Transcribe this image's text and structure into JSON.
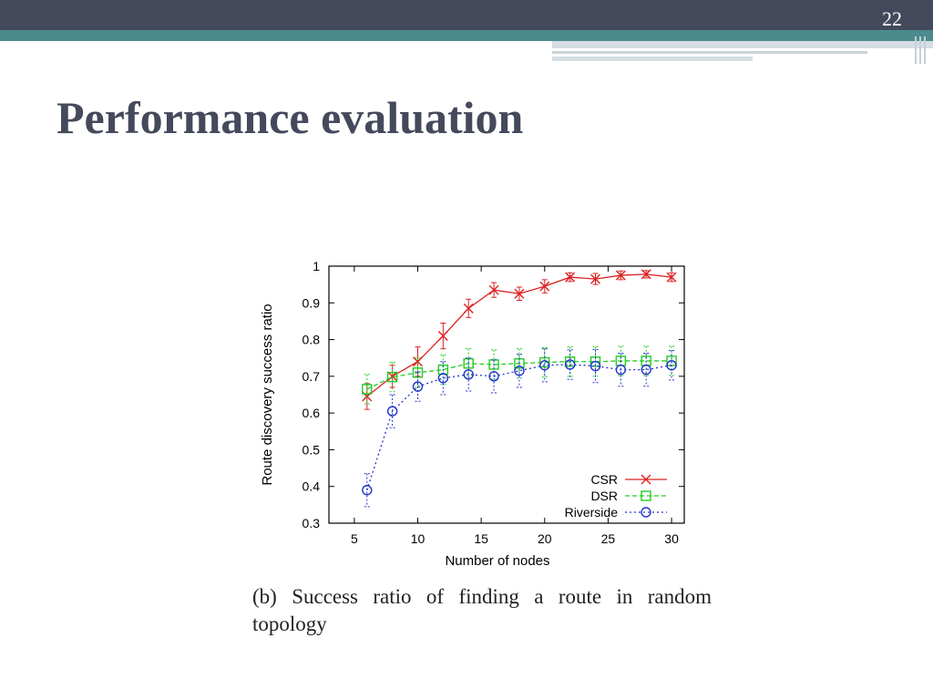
{
  "slide": {
    "number": "22",
    "title": "Performance evaluation",
    "caption": "(b) Success ratio of finding a route in random topology",
    "colors": {
      "top_bar": "#444a5b",
      "teal_band": "#4b8b8d",
      "title": "#444a5b"
    }
  },
  "chart_data": {
    "type": "line",
    "xlabel": "Number of nodes",
    "ylabel": "Route discovery success ratio",
    "xlim": [
      3,
      31
    ],
    "ylim": [
      0.3,
      1.0
    ],
    "x_ticks": [
      5,
      10,
      15,
      20,
      25,
      30
    ],
    "y_ticks": [
      0.3,
      0.4,
      0.5,
      0.6,
      0.7,
      0.8,
      0.9,
      1
    ],
    "y_tick_labels": [
      "0.3",
      "0.4",
      "0.5",
      "0.6",
      "0.7",
      "0.8",
      "0.9",
      "1"
    ],
    "x": [
      6,
      8,
      10,
      12,
      14,
      16,
      18,
      20,
      22,
      24,
      26,
      28,
      30
    ],
    "legend_position": "bottom-right",
    "grid": false,
    "series": [
      {
        "name": "CSR",
        "color": "#dd2020",
        "marker": "x",
        "dash": "",
        "values": [
          0.645,
          0.7,
          0.74,
          0.81,
          0.885,
          0.935,
          0.925,
          0.945,
          0.97,
          0.965,
          0.975,
          0.978,
          0.97
        ],
        "errors": [
          0.035,
          0.03,
          0.04,
          0.035,
          0.025,
          0.02,
          0.018,
          0.018,
          0.012,
          0.015,
          0.012,
          0.01,
          0.012
        ]
      },
      {
        "name": "DSR",
        "color": "#22cc22",
        "marker": "square",
        "dash": "5,3",
        "values": [
          0.665,
          0.698,
          0.71,
          0.718,
          0.735,
          0.732,
          0.735,
          0.738,
          0.74,
          0.74,
          0.742,
          0.742,
          0.742
        ],
        "errors": [
          0.04,
          0.04,
          0.04,
          0.04,
          0.04,
          0.04,
          0.04,
          0.04,
          0.04,
          0.04,
          0.04,
          0.04,
          0.04
        ]
      },
      {
        "name": "Riverside",
        "color": "#2233cc",
        "marker": "circle",
        "dash": "2,3",
        "values": [
          0.39,
          0.605,
          0.672,
          0.695,
          0.705,
          0.7,
          0.715,
          0.73,
          0.732,
          0.728,
          0.718,
          0.718,
          0.73
        ],
        "errors": [
          0.045,
          0.045,
          0.04,
          0.045,
          0.045,
          0.045,
          0.045,
          0.045,
          0.04,
          0.045,
          0.045,
          0.045,
          0.04
        ]
      }
    ]
  }
}
